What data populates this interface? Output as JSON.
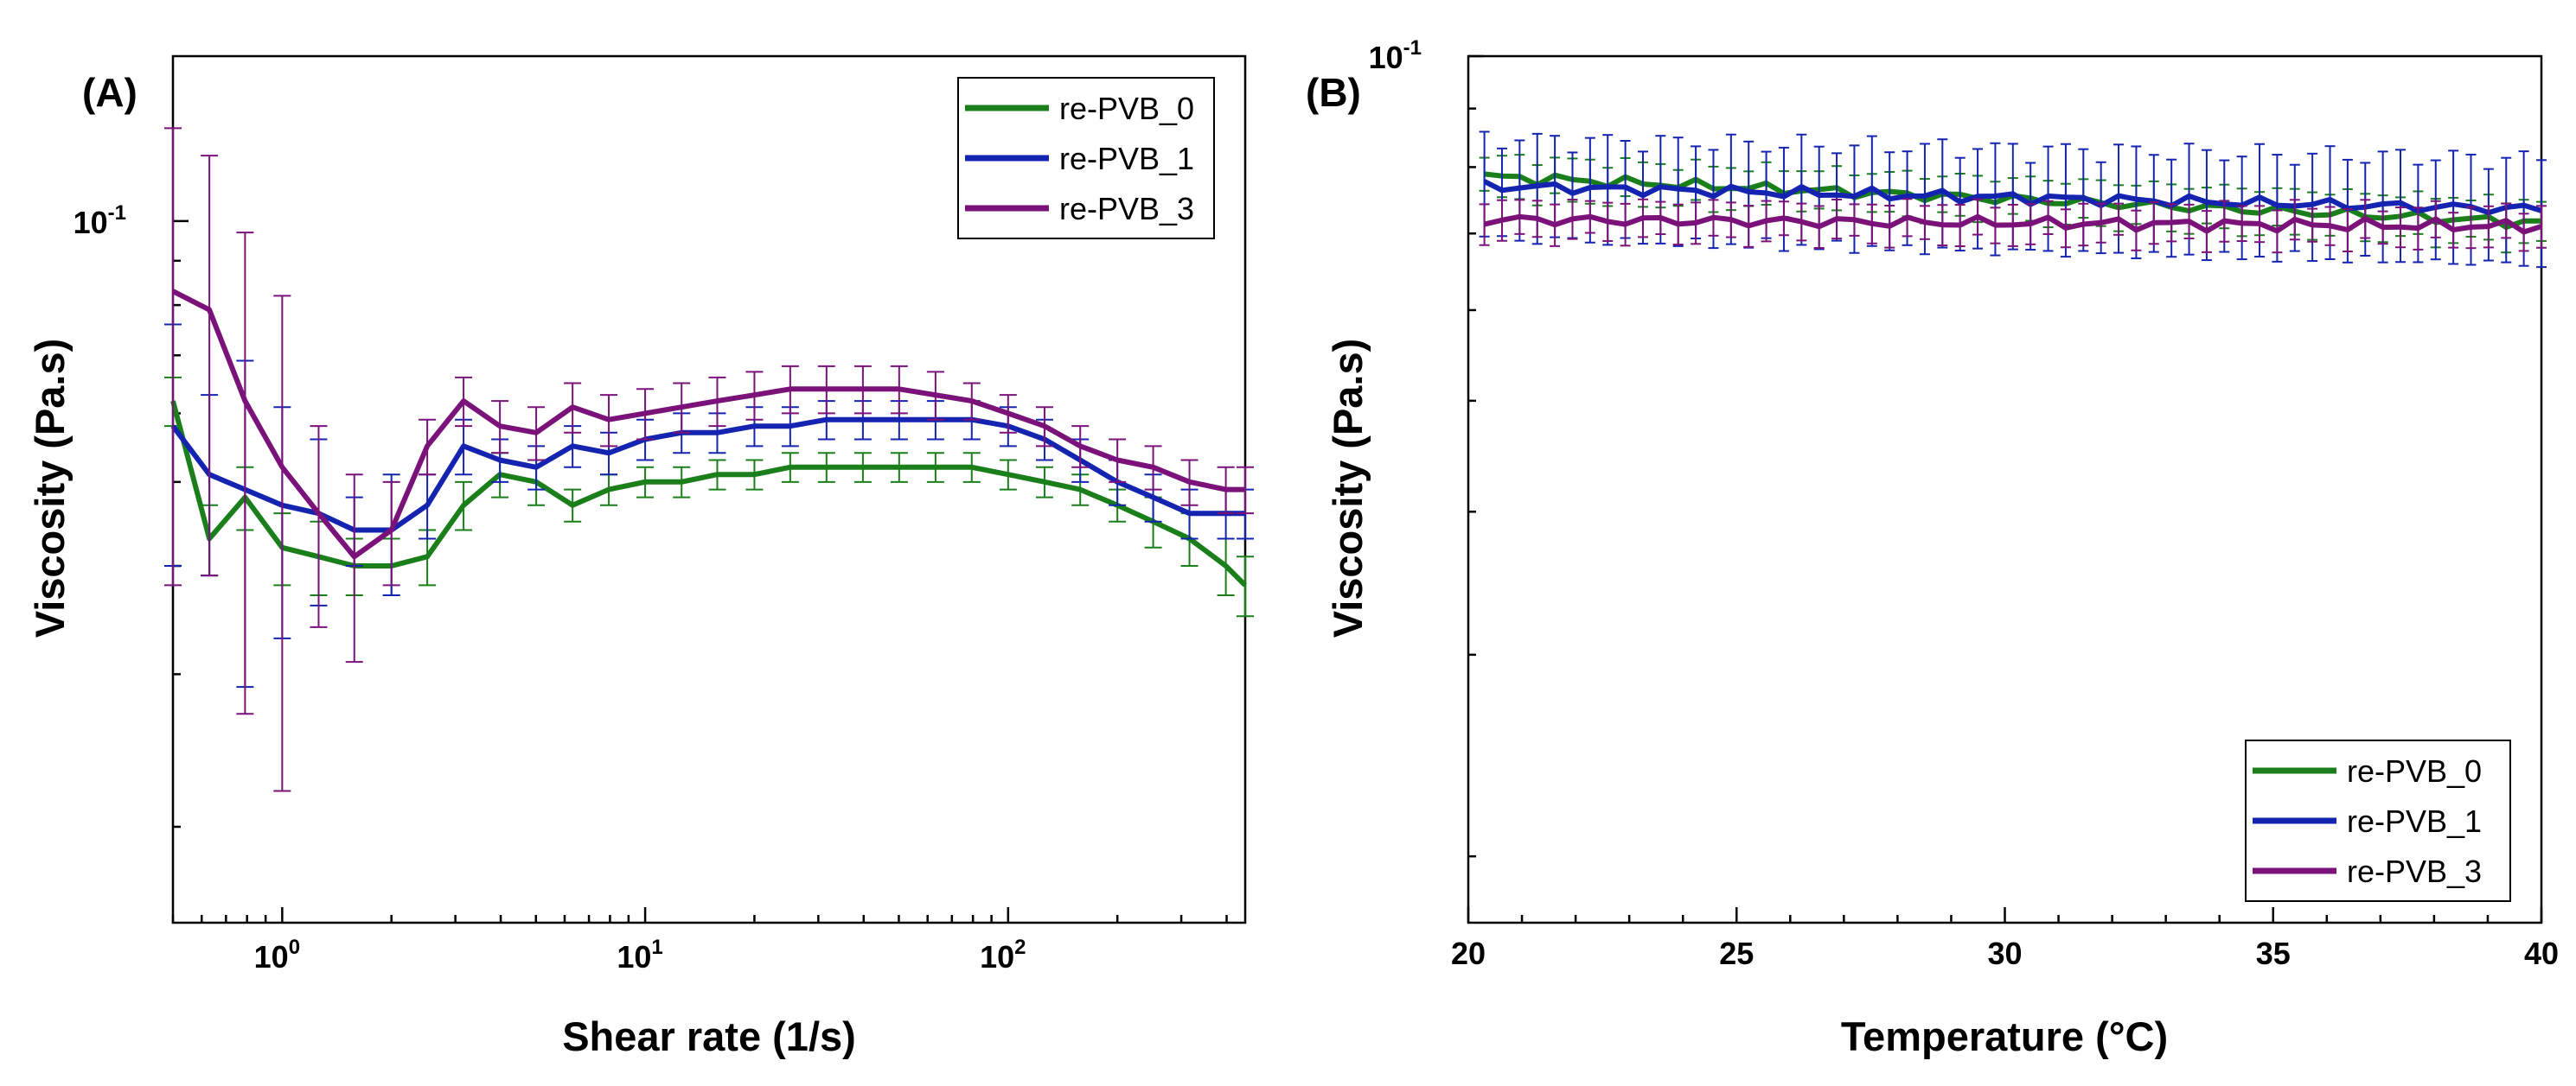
{
  "chart_data": [
    {
      "panel": "(A)",
      "type": "line",
      "xlabel": "Shear rate (1/s)",
      "ylabel": "Viscosity (Pa.s)",
      "xscale": "log",
      "yscale": "log",
      "xlim": [
        0.5,
        450
      ],
      "ylim": [
        0.0155,
        0.155
      ],
      "x_ticks": [
        {
          "base": "10",
          "exp": "0",
          "value": 1
        },
        {
          "base": "10",
          "exp": "1",
          "value": 10
        },
        {
          "base": "10",
          "exp": "2",
          "value": 100
        }
      ],
      "y_ticks": [
        {
          "base": "10",
          "exp": "-1",
          "value": 0.1
        }
      ],
      "legend_position": "top-right",
      "x": [
        0.5,
        0.63,
        0.79,
        1.0,
        1.26,
        1.58,
        2.0,
        2.51,
        3.16,
        3.98,
        5.01,
        6.31,
        7.94,
        10,
        12.6,
        15.8,
        20,
        25.1,
        31.6,
        39.8,
        50.1,
        63.1,
        79.4,
        100,
        126,
        158,
        200,
        251,
        316,
        398,
        450
      ],
      "series": [
        {
          "name": "re-PVB_0",
          "color": "#1a7f1a",
          "values": [
            0.062,
            0.043,
            0.048,
            0.042,
            0.041,
            0.04,
            0.04,
            0.041,
            0.047,
            0.051,
            0.05,
            0.047,
            0.049,
            0.05,
            0.05,
            0.051,
            0.051,
            0.052,
            0.052,
            0.052,
            0.052,
            0.052,
            0.052,
            0.051,
            0.05,
            0.049,
            0.047,
            0.045,
            0.043,
            0.04,
            0.038
          ],
          "err": [
            0.004,
            0.004,
            0.004,
            0.004,
            0.004,
            0.003,
            0.003,
            0.003,
            0.003,
            0.003,
            0.003,
            0.002,
            0.002,
            0.002,
            0.002,
            0.002,
            0.002,
            0.002,
            0.002,
            0.002,
            0.002,
            0.002,
            0.002,
            0.002,
            0.002,
            0.002,
            0.002,
            0.003,
            0.003,
            0.003,
            0.003
          ]
        },
        {
          "name": "re-PVB_1",
          "color": "#1423b0",
          "values": [
            0.058,
            0.051,
            0.049,
            0.047,
            0.046,
            0.044,
            0.044,
            0.047,
            0.055,
            0.053,
            0.052,
            0.055,
            0.054,
            0.056,
            0.057,
            0.057,
            0.058,
            0.058,
            0.059,
            0.059,
            0.059,
            0.059,
            0.059,
            0.058,
            0.056,
            0.053,
            0.05,
            0.048,
            0.046,
            0.046,
            0.046
          ],
          "err": [
            0.018,
            0.012,
            0.02,
            0.014,
            0.01,
            0.004,
            0.007,
            0.004,
            0.004,
            0.003,
            0.003,
            0.003,
            0.003,
            0.003,
            0.003,
            0.003,
            0.003,
            0.003,
            0.003,
            0.003,
            0.003,
            0.003,
            0.003,
            0.003,
            0.003,
            0.003,
            0.003,
            0.003,
            0.003,
            0.003,
            0.003
          ]
        },
        {
          "name": "re-PVB_3",
          "color": "#7a127a",
          "values": [
            0.083,
            0.079,
            0.062,
            0.052,
            0.046,
            0.041,
            0.044,
            0.055,
            0.062,
            0.058,
            0.057,
            0.061,
            0.059,
            0.06,
            0.061,
            0.062,
            0.063,
            0.064,
            0.064,
            0.064,
            0.064,
            0.063,
            0.062,
            0.06,
            0.058,
            0.055,
            0.053,
            0.052,
            0.05,
            0.049,
            0.049
          ],
          "err": [
            0.045,
            0.04,
            0.035,
            0.03,
            0.012,
            0.01,
            0.006,
            0.004,
            0.004,
            0.004,
            0.004,
            0.004,
            0.004,
            0.004,
            0.004,
            0.004,
            0.004,
            0.004,
            0.004,
            0.004,
            0.004,
            0.004,
            0.003,
            0.003,
            0.003,
            0.003,
            0.003,
            0.003,
            0.003,
            0.003,
            0.003
          ]
        }
      ]
    },
    {
      "panel": "(B)",
      "type": "line",
      "xlabel": "Temperature (°C)",
      "ylabel": "Viscosity (Pa.s)",
      "xscale": "linear",
      "yscale": "log",
      "xlim": [
        20,
        40
      ],
      "ylim": [
        0.0175,
        0.1
      ],
      "x_ticks": [
        {
          "label": "20",
          "value": 20
        },
        {
          "label": "25",
          "value": 25
        },
        {
          "label": "30",
          "value": 30
        },
        {
          "label": "35",
          "value": 35
        },
        {
          "label": "40",
          "value": 40
        }
      ],
      "y_ticks": [
        {
          "base": "10",
          "exp": "-1",
          "value": 0.1
        }
      ],
      "legend_position": "bottom-right",
      "x_range": [
        20.3,
        40
      ],
      "series": [
        {
          "name": "re-PVB_0",
          "color": "#1a7f1a",
          "start": 0.0785,
          "end": 0.0715,
          "err": 0.0035
        },
        {
          "name": "re-PVB_1",
          "color": "#1423b0",
          "start": 0.077,
          "end": 0.0735,
          "err": 0.0085
        },
        {
          "name": "re-PVB_3",
          "color": "#7a127a",
          "start": 0.072,
          "end": 0.071,
          "err": 0.003
        }
      ]
    }
  ]
}
